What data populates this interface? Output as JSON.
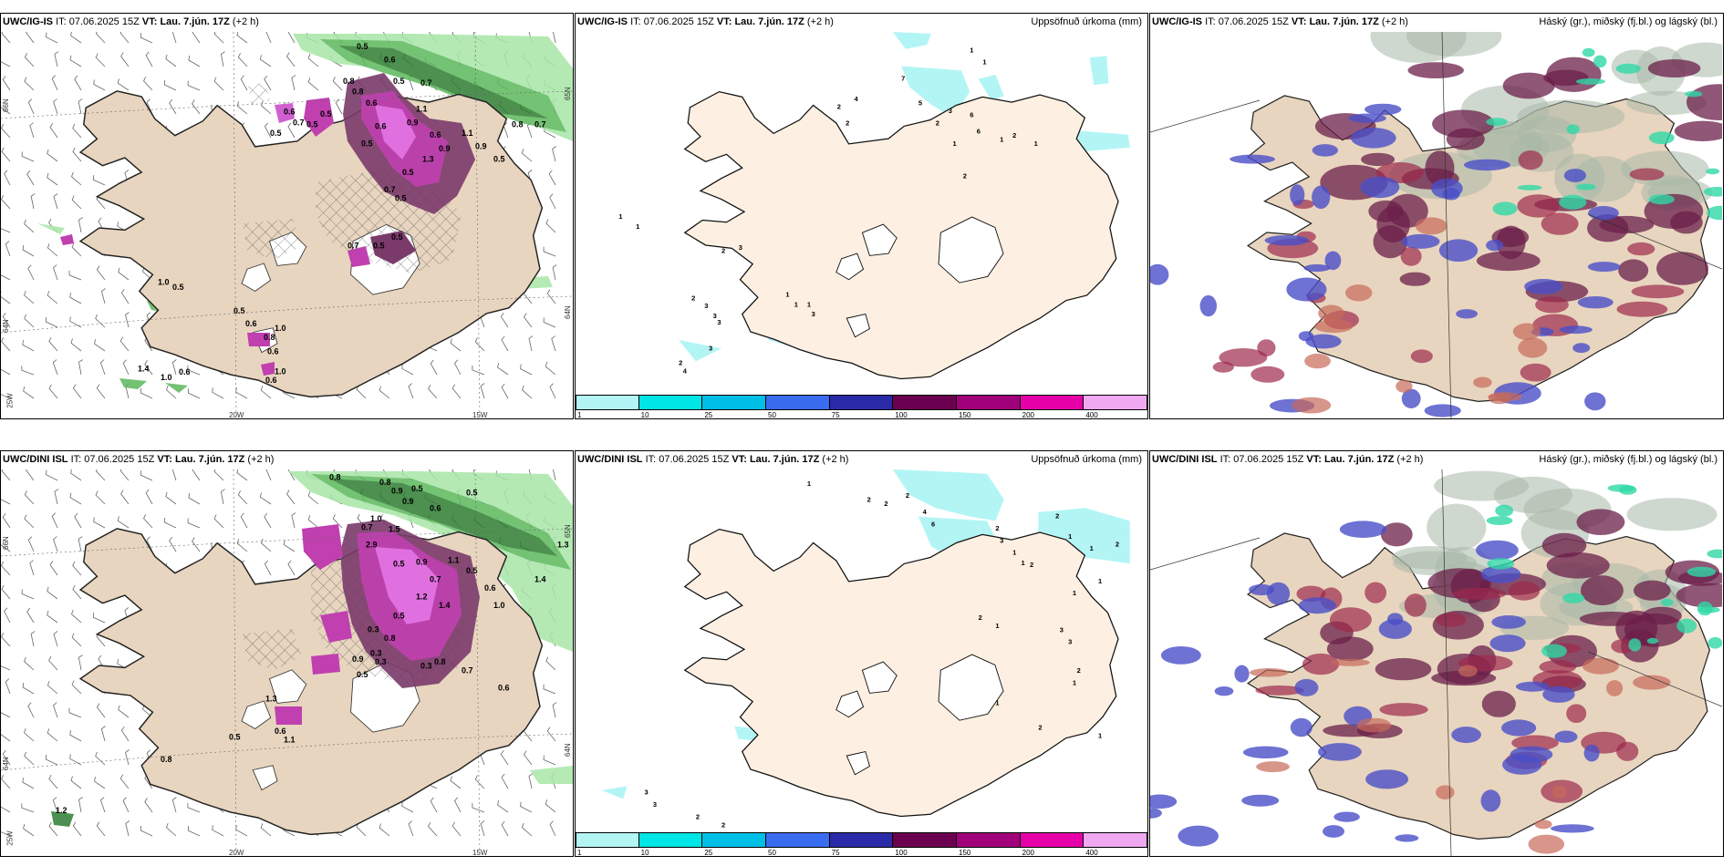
{
  "panels": {
    "p1": {
      "model": "UWC/IG-IS",
      "it_label": "IT:",
      "it": "07.06.2025 15Z",
      "vt_label": "VT:",
      "vt": "Lau. 7.jún. 17Z",
      "lead": "(+2 h)"
    },
    "p2": {
      "model": "UWC/IG-IS",
      "it_label": "IT:",
      "it": "07.06.2025 15Z",
      "vt_label": "VT:",
      "vt": "Lau. 7.jún. 17Z",
      "lead": "(+2 h)",
      "right": "Uppsöfnuð úrkoma (mm)"
    },
    "p3": {
      "model": "UWC/IG-IS",
      "it_label": "IT:",
      "it": "07.06.2025 15Z",
      "vt_label": "VT:",
      "vt": "Lau. 7.jún. 17Z",
      "lead": "(+2 h)",
      "right": "Háský (gr.), miðský (fj.bl.) og lágský (bl.)"
    },
    "p4": {
      "model": "UWC/DINI ISL",
      "it_label": "IT:",
      "it": "07.06.2025 15Z",
      "vt_label": "VT:",
      "vt": "Lau. 7.jún. 17Z",
      "lead": "(+2 h)"
    },
    "p5": {
      "model": "UWC/DINI ISL",
      "it_label": "IT:",
      "it": "07.06.2025 15Z",
      "vt_label": "VT:",
      "vt": "Lau. 7.jún. 17Z",
      "lead": "(+2 h)",
      "right": "Uppsöfnuð úrkoma (mm)"
    },
    "p6": {
      "model": "UWC/DINI ISL",
      "it_label": "IT:",
      "it": "07.06.2025 15Z",
      "vt_label": "VT:",
      "vt": "Lau. 7.jún. 17Z",
      "lead": "(+2 h)",
      "right": "Háský (gr.), miðský (fj.bl.) og lágský (bl.)"
    }
  },
  "axes": {
    "lat_66": "66N",
    "lat_64": "64N",
    "lat_65": "65N",
    "lon_25": "25W",
    "lon_20": "20W",
    "lon_15": "15W"
  },
  "colorbar": {
    "ticks": [
      "1",
      "10",
      "25",
      "50",
      "75",
      "100",
      "150",
      "200",
      "400"
    ],
    "colors": [
      "#b3f5f5",
      "#00e5e5",
      "#00bfe6",
      "#3a6cf0",
      "#2a2aa8",
      "#6b0050",
      "#a0007a",
      "#e600a8",
      "#f0a8f0"
    ]
  },
  "labels": {
    "p1": [
      "0.5",
      "0.6",
      "0.8",
      "0.8",
      "0.6",
      "0.5",
      "0.7",
      "1.1",
      "0.9",
      "0.6",
      "0.9",
      "1.3",
      "0.5",
      "0.6",
      "0.5",
      "0.7",
      "0.5",
      "0.6",
      "0.7",
      "0.5",
      "0.5",
      "0.5",
      "0.8",
      "0.7",
      "1.1",
      "0.9",
      "0.5",
      "0.5",
      "0.5",
      "0.7",
      "1.0",
      "0.8",
      "0.6",
      "0.6",
      "1.0",
      "0.5",
      "0.5",
      "1.0",
      "0.6",
      "1.4",
      "1.0",
      "0.6"
    ],
    "p2": [
      "1",
      "1",
      "2",
      "4",
      "7",
      "5",
      "2",
      "2",
      "3",
      "6",
      "6",
      "1",
      "1",
      "2",
      "1",
      "2",
      "1",
      "1",
      "3",
      "2",
      "2",
      "3",
      "3",
      "3",
      "1",
      "1",
      "1",
      "3",
      "3",
      "2",
      "4"
    ],
    "p4": [
      "0.8",
      "0.8",
      "0.9",
      "0.9",
      "0.5",
      "0.6",
      "0.5",
      "1.0",
      "0.7",
      "1.5",
      "2.9",
      "0.5",
      "0.9",
      "0.7",
      "1.1",
      "0.5",
      "1.2",
      "1.4",
      "0.5",
      "0.3",
      "0.8",
      "0.3",
      "0.9",
      "0.3",
      "0.5",
      "0.3",
      "0.8",
      "0.7",
      "0.6",
      "1.0",
      "1.3",
      "1.4",
      "0.6",
      "0.6",
      "1.1",
      "1.3",
      "0.5",
      "0.8",
      "1.2"
    ],
    "p5": [
      "1",
      "2",
      "2",
      "2",
      "4",
      "6",
      "2",
      "3",
      "1",
      "1",
      "2",
      "2",
      "1",
      "1",
      "2",
      "1",
      "1",
      "2",
      "1",
      "3",
      "3",
      "2",
      "1",
      "1",
      "2",
      "1",
      "3",
      "3",
      "2",
      "2"
    ]
  }
}
